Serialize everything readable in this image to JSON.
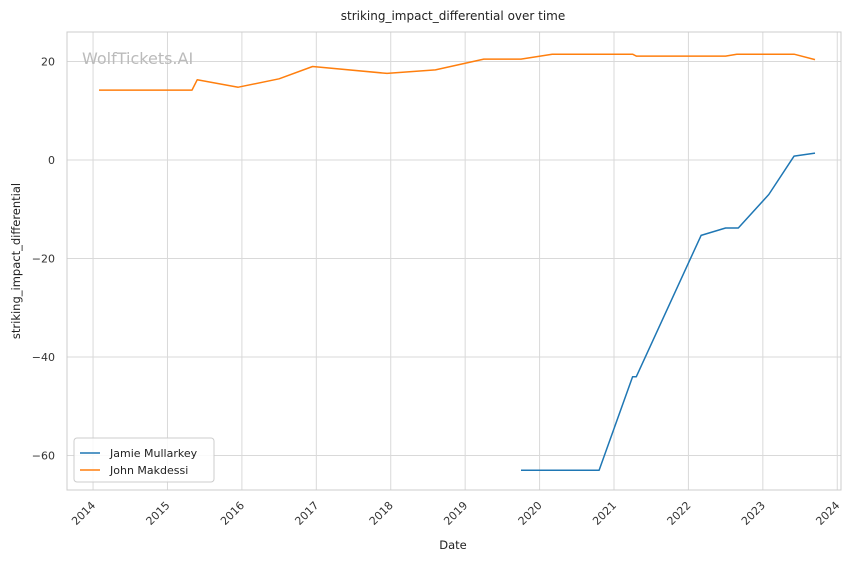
{
  "chart_data": {
    "type": "line",
    "title": "striking_impact_differential over time",
    "xlabel": "Date",
    "ylabel": "striking_impact_differential",
    "watermark": "WolfTickets.AI",
    "xlim": [
      2013.65,
      2024.05
    ],
    "ylim": [
      -67,
      26
    ],
    "x_ticks": [
      2014,
      2015,
      2016,
      2017,
      2018,
      2019,
      2020,
      2021,
      2022,
      2023,
      2024
    ],
    "x_tick_labels": [
      "2014",
      "2015",
      "2016",
      "2017",
      "2018",
      "2019",
      "2020",
      "2021",
      "2022",
      "2023",
      "2024"
    ],
    "y_ticks": [
      20,
      0,
      -20,
      -40,
      -60
    ],
    "y_tick_labels": [
      "20",
      "0",
      "−20",
      "−40",
      "−60"
    ],
    "grid": true,
    "legend_position": "lower-left",
    "series": [
      {
        "name": "Jamie Mullarkey",
        "color": "#1f77b4",
        "points": [
          [
            2019.75,
            -63
          ],
          [
            2020.8,
            -63
          ],
          [
            2021.25,
            -44
          ],
          [
            2021.3,
            -44
          ],
          [
            2022.17,
            -15.3
          ],
          [
            2022.5,
            -13.8
          ],
          [
            2022.67,
            -13.8
          ],
          [
            2023.08,
            -7
          ],
          [
            2023.42,
            0.8
          ],
          [
            2023.7,
            1.4
          ]
        ]
      },
      {
        "name": "John Makdessi",
        "color": "#ff7f0e",
        "points": [
          [
            2014.08,
            14.2
          ],
          [
            2015.33,
            14.2
          ],
          [
            2015.4,
            16.3
          ],
          [
            2015.95,
            14.8
          ],
          [
            2016.5,
            16.5
          ],
          [
            2016.95,
            19
          ],
          [
            2017.95,
            17.6
          ],
          [
            2018.6,
            18.3
          ],
          [
            2019.25,
            20.5
          ],
          [
            2019.75,
            20.5
          ],
          [
            2020.17,
            21.5
          ],
          [
            2021.25,
            21.5
          ],
          [
            2021.3,
            21.1
          ],
          [
            2022.5,
            21.1
          ],
          [
            2022.65,
            21.5
          ],
          [
            2023.42,
            21.5
          ],
          [
            2023.7,
            20.4
          ]
        ]
      }
    ]
  }
}
